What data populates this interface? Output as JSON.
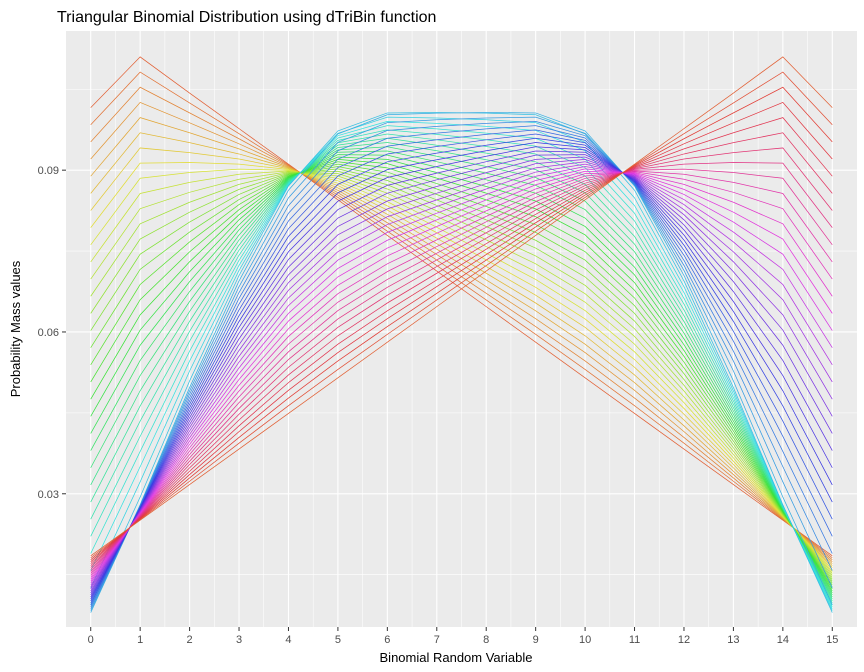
{
  "chart_data": {
    "type": "line",
    "title": "Triangular Binomial Distribution using dTriBin function",
    "xlabel": "Binomial Random Variable",
    "ylabel": "Probability Mass values",
    "x": [
      0,
      1,
      2,
      3,
      4,
      5,
      6,
      7,
      8,
      9,
      10,
      11,
      12,
      13,
      14,
      15
    ],
    "xlim": [
      -0.5,
      15.5
    ],
    "ylim": [
      0.0053,
      0.1158
    ],
    "y_ticks": [
      0.03,
      0.06,
      0.09
    ],
    "y_tick_labels": [
      "0.03",
      "0.06",
      "0.09"
    ],
    "x_tick_labels": [
      "0",
      "1",
      "2",
      "3",
      "4",
      "5",
      "6",
      "7",
      "8",
      "9",
      "10",
      "11",
      "12",
      "13",
      "14",
      "15"
    ],
    "grid": true,
    "legend": "none",
    "panel_color": "#ebebeb",
    "grid_color": "#ffffff",
    "series_count": 60,
    "series_hue_range": [
      15,
      375
    ],
    "series_hue_direction": "left-peaked series red to orange, green, cyan, blue, magenta for right-peaked series",
    "edge_curves": {
      "left_peaked": [
        0.1016,
        0.111,
        0.1043,
        0.0977,
        0.0911,
        0.0845,
        0.0779,
        0.0713,
        0.0647,
        0.0581,
        0.0515,
        0.0449,
        0.0383,
        0.0317,
        0.0251,
        0.0185
      ],
      "right_peaked": [
        0.0185,
        0.0251,
        0.0317,
        0.0383,
        0.0449,
        0.0515,
        0.0581,
        0.0647,
        0.0713,
        0.0779,
        0.0845,
        0.0911,
        0.0977,
        0.1043,
        0.111,
        0.1016
      ],
      "central": [
        0.0078,
        0.028,
        0.05,
        0.07,
        0.087,
        0.0975,
        0.101,
        0.1012,
        0.1012,
        0.101,
        0.0975,
        0.087,
        0.07,
        0.05,
        0.028,
        0.0078
      ]
    }
  }
}
